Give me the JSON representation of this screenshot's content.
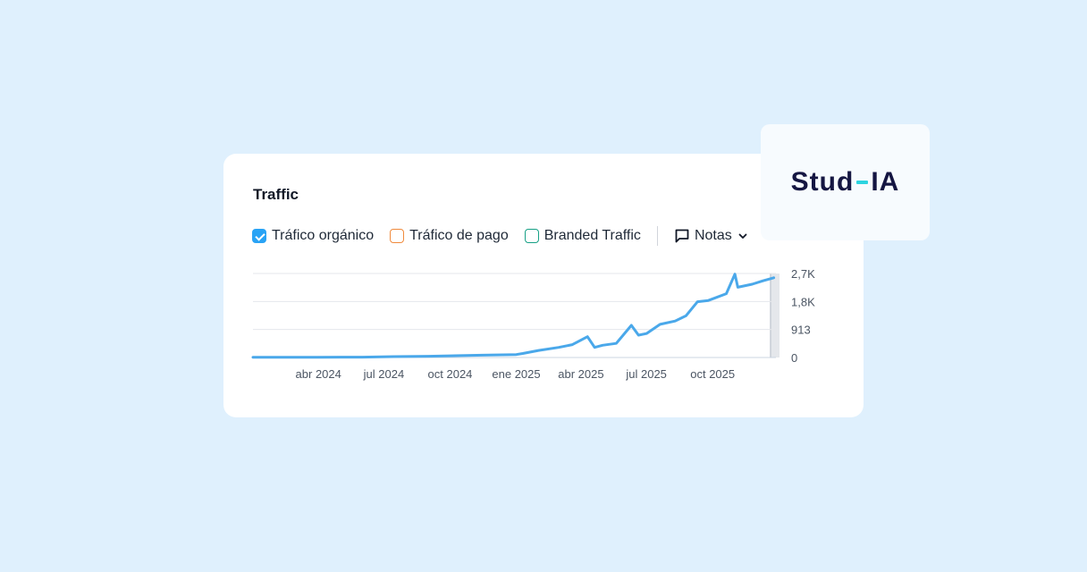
{
  "card": {
    "title": "Traffic",
    "legend": [
      {
        "label": "Tráfico orgánico",
        "state": "checked",
        "color": "#29a3f5"
      },
      {
        "label": "Tráfico de pago",
        "state": "unchecked",
        "color": "#f08a3c"
      },
      {
        "label": "Branded Traffic",
        "state": "unchecked",
        "color": "#16a085"
      }
    ],
    "notes_label": "Notas"
  },
  "logo": {
    "left": "Stud",
    "right": "IA",
    "accent": "#2dd4e0",
    "color": "#151642"
  },
  "chart_data": {
    "type": "line",
    "title": "",
    "xlabel": "",
    "ylabel": "",
    "x_ticks": [
      "abr 2024",
      "jul 2024",
      "oct 2024",
      "ene 2025",
      "abr 2025",
      "jul 2025",
      "oct 2025"
    ],
    "y_ticks": [
      "0",
      "913",
      "1,8K",
      "2,7K"
    ],
    "ylim": [
      0,
      2740
    ],
    "y_axis_position": "right",
    "grid": true,
    "series": [
      {
        "color": "#4aa8ea",
        "x": [
          "2024-01-01",
          "2024-02-15",
          "2024-04-01",
          "2024-06-01",
          "2024-07-15",
          "2024-09-01",
          "2024-10-01",
          "2024-11-15",
          "2025-01-01",
          "2025-01-10",
          "2025-02-01",
          "2025-03-01",
          "2025-03-20",
          "2025-04-10",
          "2025-04-20",
          "2025-05-01",
          "2025-05-20",
          "2025-06-10",
          "2025-06-20",
          "2025-07-01",
          "2025-07-20",
          "2025-08-10",
          "2025-08-25",
          "2025-09-10",
          "2025-09-25",
          "2025-10-20",
          "2025-11-01",
          "2025-11-05",
          "2025-11-25",
          "2025-12-10",
          "2025-12-25"
        ],
        "y": [
          5,
          5,
          8,
          12,
          30,
          40,
          55,
          75,
          95,
          130,
          230,
          330,
          420,
          680,
          330,
          400,
          460,
          1050,
          730,
          780,
          1080,
          1190,
          1360,
          1820,
          1860,
          2080,
          2720,
          2290,
          2390,
          2500,
          2600
        ]
      }
    ]
  }
}
